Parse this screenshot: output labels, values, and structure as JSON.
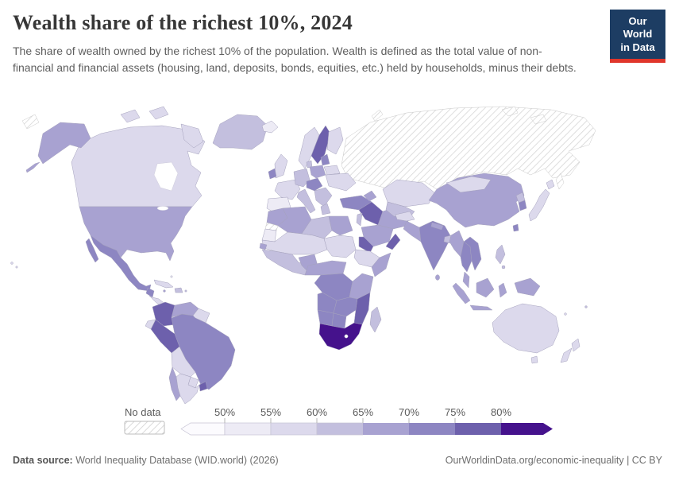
{
  "header": {
    "title": "Wealth share of the richest 10%, 2024",
    "subtitle": "The share of wealth owned by the richest 10% of the population. Wealth is defined as the total value of non-financial and financial assets (housing, land, deposits, bonds, equities, etc.) held by households, minus their debts.",
    "logo": {
      "line1": "Our World",
      "line2": "in Data",
      "bg_color": "#1d3d63",
      "accent_color": "#e0362b"
    }
  },
  "chart_data": {
    "type": "choropleth_map",
    "title": "Wealth share of the richest 10%, 2024",
    "unit": "% of total wealth",
    "legend": {
      "no_data_label": "No data",
      "tick_labels": [
        "50%",
        "55%",
        "60%",
        "65%",
        "70%",
        "75%",
        "80%"
      ],
      "bins": [
        {
          "label": "<50%",
          "color": "#fcfbfe"
        },
        {
          "label": "50-55%",
          "color": "#edebf5"
        },
        {
          "label": "55-60%",
          "color": "#dcd9ec"
        },
        {
          "label": "60-65%",
          "color": "#c3bfde"
        },
        {
          "label": "65-70%",
          "color": "#a8a2d1"
        },
        {
          "label": "70-75%",
          "color": "#8d86c2"
        },
        {
          "label": "75-80%",
          "color": "#6d60ac"
        },
        {
          "label": ">80%",
          "color": "#45128c"
        }
      ]
    },
    "regions": [
      {
        "id": "canada",
        "name": "Canada",
        "bin": 2
      },
      {
        "id": "alaska",
        "name": "United States (Alaska)",
        "bin": 4
      },
      {
        "id": "usa",
        "name": "United States",
        "bin": 4
      },
      {
        "id": "greenland",
        "name": "Greenland",
        "bin": 3
      },
      {
        "id": "mexico",
        "name": "Mexico",
        "bin": 5
      },
      {
        "id": "guatemala",
        "name": "Guatemala",
        "bin": 5
      },
      {
        "id": "central-america",
        "name": "Central America",
        "bin": 2
      },
      {
        "id": "cuba",
        "name": "Cuba",
        "bin": 2
      },
      {
        "id": "hispaniola",
        "name": "Haiti / Dominican Rep.",
        "bin": 3
      },
      {
        "id": "jamaica",
        "name": "Jamaica",
        "bin": 4
      },
      {
        "id": "puerto-rico",
        "name": "Puerto Rico",
        "bin": 3
      },
      {
        "id": "bahamas",
        "name": "Bahamas",
        "bin": 1
      },
      {
        "id": "colombia",
        "name": "Colombia",
        "bin": 6
      },
      {
        "id": "venezuela",
        "name": "Venezuela",
        "bin": 4
      },
      {
        "id": "guyanas",
        "name": "Guyana / Suriname",
        "bin": 2
      },
      {
        "id": "ecuador",
        "name": "Ecuador",
        "bin": 2
      },
      {
        "id": "peru",
        "name": "Peru",
        "bin": 6
      },
      {
        "id": "brazil",
        "name": "Brazil",
        "bin": 5
      },
      {
        "id": "bolivia",
        "name": "Bolivia",
        "bin": 2
      },
      {
        "id": "paraguay",
        "name": "Paraguay",
        "bin": 2
      },
      {
        "id": "chile",
        "name": "Chile",
        "bin": 4
      },
      {
        "id": "argentina",
        "name": "Argentina",
        "bin": 2
      },
      {
        "id": "uruguay",
        "name": "Uruguay",
        "bin": 6
      },
      {
        "id": "iceland",
        "name": "Iceland",
        "bin": 1
      },
      {
        "id": "norway",
        "name": "Norway",
        "bin": 2
      },
      {
        "id": "sweden",
        "name": "Sweden",
        "bin": 6
      },
      {
        "id": "finland",
        "name": "Finland",
        "bin": 2
      },
      {
        "id": "denmark",
        "name": "Denmark",
        "bin": 3
      },
      {
        "id": "uk",
        "name": "United Kingdom",
        "bin": 2
      },
      {
        "id": "ireland",
        "name": "Ireland",
        "bin": 5
      },
      {
        "id": "france",
        "name": "France",
        "bin": 2
      },
      {
        "id": "iberia",
        "name": "Spain / Portugal",
        "bin": 1
      },
      {
        "id": "germany",
        "name": "Germany",
        "bin": 3
      },
      {
        "id": "central-europe",
        "name": "Austria / Czechia / Hungary",
        "bin": 5
      },
      {
        "id": "poland",
        "name": "Poland",
        "bin": 4
      },
      {
        "id": "baltics",
        "name": "Baltic states",
        "bin": 5
      },
      {
        "id": "belarus",
        "name": "Belarus",
        "bin": 2
      },
      {
        "id": "ukraine",
        "name": "Ukraine",
        "bin": 2
      },
      {
        "id": "italy",
        "name": "Italy",
        "bin": 3
      },
      {
        "id": "balkans",
        "name": "Balkans / Romania",
        "bin": 3
      },
      {
        "id": "greece",
        "name": "Greece",
        "bin": 3
      },
      {
        "id": "russia",
        "name": "Russia",
        "bin": "no_data"
      },
      {
        "id": "arctic-no-data",
        "name": "Arctic islands",
        "bin": "no_data"
      },
      {
        "id": "turkey",
        "name": "Turkey",
        "bin": 5
      },
      {
        "id": "caucasus",
        "name": "Caucasus",
        "bin": 4
      },
      {
        "id": "syria-iraq",
        "name": "Syria / Iraq",
        "bin": 6
      },
      {
        "id": "israel-jordan",
        "name": "Israel / Jordan",
        "bin": 3
      },
      {
        "id": "saudi-arabia",
        "name": "Saudi Arabia",
        "bin": 4
      },
      {
        "id": "yemen",
        "name": "Yemen",
        "bin": 6
      },
      {
        "id": "oman",
        "name": "Oman",
        "bin": 6
      },
      {
        "id": "iran",
        "name": "Iran",
        "bin": 4
      },
      {
        "id": "morocco",
        "name": "Morocco",
        "bin": 4
      },
      {
        "id": "western-sahara",
        "name": "Western Sahara",
        "bin": "no_data"
      },
      {
        "id": "mauritania",
        "name": "Mauritania",
        "bin": 1
      },
      {
        "id": "algeria",
        "name": "Algeria",
        "bin": 4
      },
      {
        "id": "libya",
        "name": "Libya",
        "bin": 3
      },
      {
        "id": "egypt",
        "name": "Egypt",
        "bin": 4
      },
      {
        "id": "sahel",
        "name": "Mali / Niger / Chad",
        "bin": 2
      },
      {
        "id": "senegal",
        "name": "Senegal",
        "bin": 4
      },
      {
        "id": "west-africa",
        "name": "West African coast",
        "bin": 3
      },
      {
        "id": "nigeria",
        "name": "Nigeria",
        "bin": 4
      },
      {
        "id": "sudan",
        "name": "Sudan",
        "bin": 2
      },
      {
        "id": "ethiopia",
        "name": "Ethiopia",
        "bin": 2
      },
      {
        "id": "somalia",
        "name": "Somalia",
        "bin": 4
      },
      {
        "id": "central-africa",
        "name": "Cameroon / Central Africa",
        "bin": 4
      },
      {
        "id": "drc",
        "name": "Democratic Republic of Congo",
        "bin": 5
      },
      {
        "id": "east-africa",
        "name": "Kenya / Tanzania",
        "bin": 4
      },
      {
        "id": "angola",
        "name": "Angola",
        "bin": 5
      },
      {
        "id": "zambia-zimbabwe",
        "name": "Zambia / Zimbabwe",
        "bin": 5
      },
      {
        "id": "mozambique",
        "name": "Mozambique",
        "bin": 6
      },
      {
        "id": "namibia",
        "name": "Namibia",
        "bin": 5
      },
      {
        "id": "botswana",
        "name": "Botswana",
        "bin": 5
      },
      {
        "id": "south-africa",
        "name": "South Africa",
        "bin": 7
      },
      {
        "id": "madagascar",
        "name": "Madagascar",
        "bin": 3
      },
      {
        "id": "kazakhstan",
        "name": "Kazakhstan",
        "bin": 2
      },
      {
        "id": "central-asia",
        "name": "Uzbekistan / Turkmenistan",
        "bin": 3
      },
      {
        "id": "afghanistan",
        "name": "Afghanistan",
        "bin": 2
      },
      {
        "id": "pakistan",
        "name": "Pakistan",
        "bin": 4
      },
      {
        "id": "india",
        "name": "India",
        "bin": 5
      },
      {
        "id": "nepal",
        "name": "Nepal",
        "bin": 4
      },
      {
        "id": "bangladesh",
        "name": "Bangladesh",
        "bin": 3
      },
      {
        "id": "sri-lanka",
        "name": "Sri Lanka",
        "bin": 4
      },
      {
        "id": "china",
        "name": "China",
        "bin": 4
      },
      {
        "id": "mongolia",
        "name": "Mongolia",
        "bin": 2
      },
      {
        "id": "north-korea",
        "name": "North Korea",
        "bin": 3
      },
      {
        "id": "south-korea",
        "name": "South Korea",
        "bin": 5
      },
      {
        "id": "japan",
        "name": "Japan",
        "bin": 2
      },
      {
        "id": "taiwan",
        "name": "Taiwan",
        "bin": 5
      },
      {
        "id": "myanmar",
        "name": "Myanmar",
        "bin": 4
      },
      {
        "id": "thailand",
        "name": "Thailand",
        "bin": 5
      },
      {
        "id": "indochina",
        "name": "Vietnam / Laos / Cambodia",
        "bin": 5
      },
      {
        "id": "malay-peninsula",
        "name": "Malaysia",
        "bin": 4
      },
      {
        "id": "sumatra",
        "name": "Indonesia (Sumatra)",
        "bin": 4
      },
      {
        "id": "java",
        "name": "Indonesia (Java)",
        "bin": 4
      },
      {
        "id": "borneo",
        "name": "Indonesia (Borneo)",
        "bin": 4
      },
      {
        "id": "sulawesi",
        "name": "Indonesia (Sulawesi)",
        "bin": 4
      },
      {
        "id": "new-guinea",
        "name": "Papua New Guinea",
        "bin": 4
      },
      {
        "id": "philippines",
        "name": "Philippines",
        "bin": 3
      },
      {
        "id": "australia",
        "name": "Australia",
        "bin": 2
      },
      {
        "id": "tasmania",
        "name": "Australia (Tasmania)",
        "bin": 2
      },
      {
        "id": "new-zealand",
        "name": "New Zealand",
        "bin": 2
      },
      {
        "id": "fiji",
        "name": "Fiji",
        "bin": 3
      },
      {
        "id": "pacific-islands",
        "name": "Pacific islands",
        "bin": 2
      }
    ]
  },
  "footer": {
    "source_label": "Data source:",
    "source_text": " World Inequality Database (WID.world) (2026)",
    "right_text": "OurWorldinData.org/economic-inequality | CC BY"
  }
}
